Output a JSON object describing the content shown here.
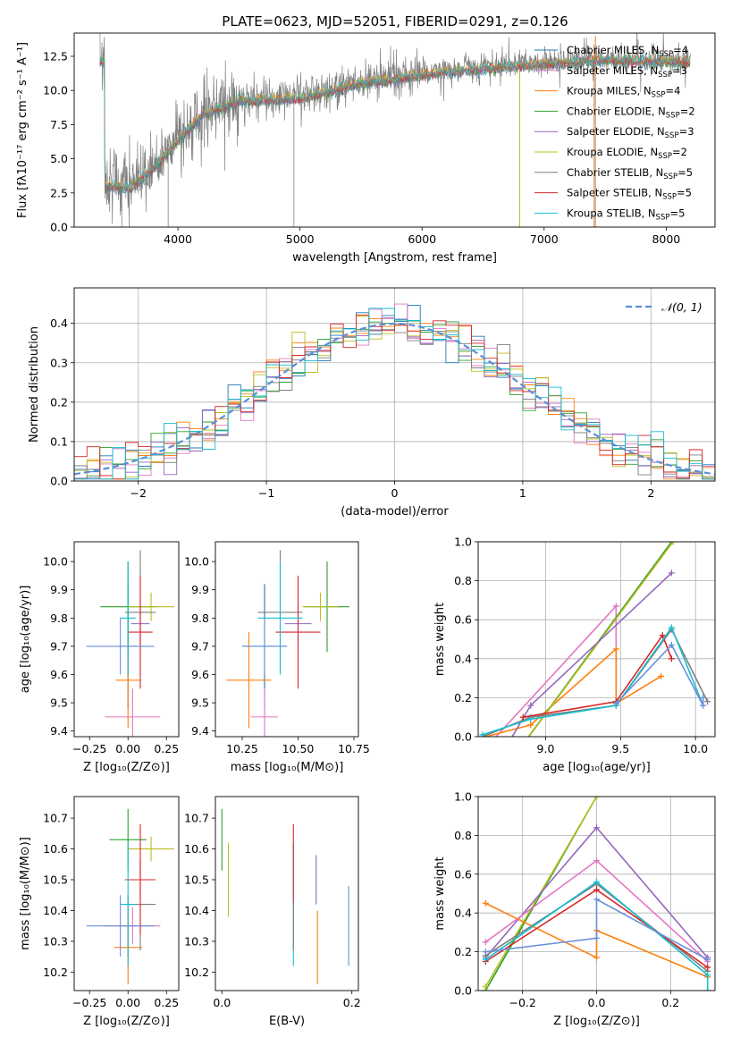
{
  "chart_data": [
    {
      "id": "spectrum",
      "type": "line",
      "title": "PLATE=0623, MJD=52051, FIBERID=0291, z=0.126",
      "xlabel": "wavelength [Angstrom, rest frame]",
      "ylabel": "Flux [fλ10⁻¹⁷ erg cm⁻² s⁻¹ A⁻¹]",
      "xlim": [
        3150,
        8400
      ],
      "ylim": [
        0,
        14.2
      ],
      "xticks": [
        4000,
        5000,
        6000,
        7000,
        8000
      ],
      "yticks": [
        0.0,
        2.5,
        5.0,
        7.5,
        10.0,
        12.5
      ],
      "legend_position": "top-right",
      "legend": [
        {
          "label": "Chabrier MILES, N",
          "sub": "SSP",
          "n": "=4",
          "color": "#1f77b4"
        },
        {
          "label": "Salpeter MILES, N",
          "sub": "SSP",
          "n": "=3",
          "color": "#e377c2"
        },
        {
          "label": "Kroupa MILES, N",
          "sub": "SSP",
          "n": "=4",
          "color": "#ff7f0e"
        },
        {
          "label": "Chabrier ELODIE, N",
          "sub": "SSP",
          "n": "=2",
          "color": "#2ca02c"
        },
        {
          "label": "Salpeter ELODIE, N",
          "sub": "SSP",
          "n": "=3",
          "color": "#9467bd"
        },
        {
          "label": "Kroupa ELODIE, N",
          "sub": "SSP",
          "n": "=2",
          "color": "#bcbd22"
        },
        {
          "label": "Chabrier STELIB, N",
          "sub": "SSP",
          "n": "=5",
          "color": "#7f7f7f"
        },
        {
          "label": "Salpeter STELIB, N",
          "sub": "SSP",
          "n": "=5",
          "color": "#d62728"
        },
        {
          "label": "Kroupa STELIB, N",
          "sub": "SSP",
          "n": "=5",
          "color": "#17becf"
        }
      ],
      "data_trend": {
        "x": [
          3400,
          3600,
          3800,
          4000,
          4200,
          4500,
          5000,
          5500,
          6000,
          6500,
          7000,
          7500,
          8000,
          8200
        ],
        "y": [
          3.3,
          3.0,
          4.5,
          6.5,
          8.4,
          9.4,
          9.6,
          10.7,
          11.3,
          11.8,
          12.1,
          12.4,
          12.3,
          12.3
        ]
      }
    },
    {
      "id": "residuals",
      "type": "histogram",
      "xlabel": "(data-model)/error",
      "ylabel": "Normed distribution",
      "xlim": [
        -2.5,
        2.5
      ],
      "ylim": [
        0,
        0.49
      ],
      "xticks": [
        -2,
        -1,
        0,
        1,
        2
      ],
      "yticks": [
        0.0,
        0.1,
        0.2,
        0.3,
        0.4
      ],
      "legend_label": "𝒩(0, 1)",
      "legend_position": "top-right",
      "reference_curve": "normal(0,1)"
    },
    {
      "id": "age_vs_Z",
      "type": "scatter",
      "xlabel": "Z [log₁₀(Z/Z⊙)]",
      "ylabel": "age  [log₁₀(age/yr)]",
      "xlim": [
        -0.35,
        0.33
      ],
      "ylim": [
        9.38,
        10.07
      ],
      "xticks": [
        -0.25,
        0.0,
        0.25
      ],
      "yticks": [
        9.4,
        9.5,
        9.6,
        9.7,
        9.8,
        9.9,
        10.0
      ],
      "points": [
        {
          "color": "#1f77b4",
          "x": 0.0,
          "xerr": 0.06,
          "y": 9.7,
          "yerr": 0.22
        },
        {
          "color": "#e377c2",
          "x": 0.03,
          "xerr": 0.18,
          "y": 9.45,
          "yerr": 0.1
        },
        {
          "color": "#ff7f0e",
          "x": 0.0,
          "xerr": 0.08,
          "y": 9.58,
          "yerr": 0.17
        },
        {
          "color": "#2ca02c",
          "x": 0.0,
          "xerr": 0.18,
          "y": 9.84,
          "yerr": 0.16
        },
        {
          "color": "#9467bd",
          "x": 0.08,
          "xerr": 0.06,
          "y": 9.78,
          "yerr": 0.08
        },
        {
          "color": "#bcbd22",
          "x": 0.15,
          "xerr": 0.15,
          "y": 9.84,
          "yerr": 0.05
        },
        {
          "color": "#7f7f7f",
          "x": 0.08,
          "xerr": 0.1,
          "y": 9.82,
          "yerr": 0.22
        },
        {
          "color": "#d62728",
          "x": 0.08,
          "xerr": 0.08,
          "y": 9.75,
          "yerr": 0.2
        },
        {
          "color": "#17becf",
          "x": 0.0,
          "xerr": 0.05,
          "y": 9.8,
          "yerr": 0.2
        },
        {
          "color": "#6a8fd8",
          "x": -0.05,
          "xerr": 0.22,
          "y": 9.7,
          "yerr": 0.1
        }
      ]
    },
    {
      "id": "age_vs_mass",
      "type": "scatter",
      "xlabel": "mass [log₁₀(M/M⊙)]",
      "ylabel": "",
      "xlim": [
        10.13,
        10.77
      ],
      "ylim": [
        9.38,
        10.07
      ],
      "xticks": [
        10.25,
        10.5,
        10.75
      ],
      "yticks": [
        9.4,
        9.5,
        9.6,
        9.7,
        9.8,
        9.9,
        10.0
      ],
      "points": [
        {
          "color": "#1f77b4",
          "x": 10.35,
          "xerr": 0.1,
          "y": 9.7,
          "yerr": 0.22
        },
        {
          "color": "#e377c2",
          "x": 10.35,
          "xerr": 0.06,
          "y": 9.45,
          "yerr": 0.1
        },
        {
          "color": "#ff7f0e",
          "x": 10.28,
          "xerr": 0.1,
          "y": 9.58,
          "yerr": 0.17
        },
        {
          "color": "#2ca02c",
          "x": 10.63,
          "xerr": 0.1,
          "y": 9.84,
          "yerr": 0.16
        },
        {
          "color": "#9467bd",
          "x": 10.5,
          "xerr": 0.06,
          "y": 9.78,
          "yerr": 0.08
        },
        {
          "color": "#bcbd22",
          "x": 10.6,
          "xerr": 0.08,
          "y": 9.84,
          "yerr": 0.05
        },
        {
          "color": "#7f7f7f",
          "x": 10.42,
          "xerr": 0.1,
          "y": 9.82,
          "yerr": 0.22
        },
        {
          "color": "#d62728",
          "x": 10.5,
          "xerr": 0.1,
          "y": 9.75,
          "yerr": 0.2
        },
        {
          "color": "#17becf",
          "x": 10.42,
          "xerr": 0.1,
          "y": 9.8,
          "yerr": 0.2
        },
        {
          "color": "#6a8fd8",
          "x": 10.35,
          "xerr": 0.1,
          "y": 9.7,
          "yerr": 0.1
        }
      ]
    },
    {
      "id": "weight_vs_age",
      "type": "line",
      "xlabel": "age  [log₁₀(age/yr)]",
      "ylabel": "mass weight",
      "xlim": [
        8.55,
        10.13
      ],
      "ylim": [
        0,
        1.0
      ],
      "xticks": [
        9.0,
        9.5,
        10.0
      ],
      "yticks": [
        0.0,
        0.2,
        0.4,
        0.6,
        0.8,
        1.0
      ],
      "series": [
        {
          "color": "#e377c2",
          "x": [
            8.55,
            9.47,
            9.47
          ],
          "y": [
            -0.1,
            0.67,
            0.16
          ]
        },
        {
          "color": "#ff7f0e",
          "x": [
            8.6,
            8.9,
            9.47,
            9.47,
            9.77
          ],
          "y": [
            0.0,
            0.06,
            0.45,
            0.17,
            0.31
          ]
        },
        {
          "color": "#2ca02c",
          "x": [
            8.6,
            9.84
          ],
          "y": [
            -0.3,
            1.0
          ]
        },
        {
          "color": "#bcbd22",
          "x": [
            8.62,
            9.85
          ],
          "y": [
            -0.28,
            1.0
          ]
        },
        {
          "color": "#9467bd",
          "x": [
            8.7,
            8.9,
            9.84
          ],
          "y": [
            -0.1,
            0.16,
            0.84
          ]
        },
        {
          "color": "#7f7f7f",
          "x": [
            8.58,
            8.9,
            9.47,
            9.84,
            10.08
          ],
          "y": [
            0.0,
            0.1,
            0.16,
            0.55,
            0.18
          ]
        },
        {
          "color": "#d62728",
          "x": [
            8.85,
            9.47,
            9.78,
            9.84
          ],
          "y": [
            0.1,
            0.18,
            0.52,
            0.4
          ]
        },
        {
          "color": "#17becf",
          "x": [
            8.58,
            8.9,
            9.47,
            9.84,
            10.05
          ],
          "y": [
            0.01,
            0.09,
            0.16,
            0.56,
            0.16
          ]
        },
        {
          "color": "#6a8fd8",
          "x": [
            9.47,
            9.84,
            10.05,
            10.05
          ],
          "y": [
            0.17,
            0.47,
            0.16,
            0.2
          ]
        }
      ]
    },
    {
      "id": "mass_vs_Z",
      "type": "scatter",
      "xlabel": "Z [log₁₀(Z/Z⊙)]",
      "ylabel": "mass [log₁₀(M/M⊙)]",
      "xlim": [
        -0.35,
        0.33
      ],
      "ylim": [
        10.14,
        10.77
      ],
      "xticks": [
        -0.25,
        0.0,
        0.25
      ],
      "yticks": [
        10.2,
        10.3,
        10.4,
        10.5,
        10.6,
        10.7
      ],
      "points": [
        {
          "color": "#1f77b4",
          "x": 0.0,
          "xerr": 0.05,
          "y": 10.35,
          "yerr": 0.1
        },
        {
          "color": "#e377c2",
          "x": 0.03,
          "xerr": 0.18,
          "y": 10.35,
          "yerr": 0.06
        },
        {
          "color": "#ff7f0e",
          "x": 0.0,
          "xerr": 0.09,
          "y": 10.28,
          "yerr": 0.12
        },
        {
          "color": "#2ca02c",
          "x": 0.0,
          "xerr": 0.12,
          "y": 10.63,
          "yerr": 0.1
        },
        {
          "color": "#9467bd",
          "x": 0.08,
          "xerr": 0.06,
          "y": 10.5,
          "yerr": 0.06
        },
        {
          "color": "#bcbd22",
          "x": 0.15,
          "xerr": 0.15,
          "y": 10.6,
          "yerr": 0.04
        },
        {
          "color": "#7f7f7f",
          "x": 0.08,
          "xerr": 0.1,
          "y": 10.42,
          "yerr": 0.15
        },
        {
          "color": "#d62728",
          "x": 0.08,
          "xerr": 0.1,
          "y": 10.5,
          "yerr": 0.18
        },
        {
          "color": "#17becf",
          "x": 0.0,
          "xerr": 0.05,
          "y": 10.42,
          "yerr": 0.2
        },
        {
          "color": "#6a8fd8",
          "x": -0.05,
          "xerr": 0.22,
          "y": 10.35,
          "yerr": 0.1
        }
      ]
    },
    {
      "id": "mass_vs_ebv",
      "type": "scatter",
      "xlabel": "E(B-V)",
      "ylabel": "",
      "xlim": [
        -0.01,
        0.21
      ],
      "ylim": [
        10.14,
        10.77
      ],
      "xticks": [
        0.0,
        0.2
      ],
      "yticks": [
        10.2,
        10.3,
        10.4,
        10.5,
        10.6,
        10.7
      ],
      "points": [
        {
          "color": "#2ca02c",
          "x": 0.0,
          "y": 10.63,
          "yerr": 0.1
        },
        {
          "color": "#bcbd22",
          "x": 0.01,
          "y": 10.5,
          "yerr": 0.12
        },
        {
          "color": "#17becf",
          "x": 0.11,
          "y": 10.42,
          "yerr": 0.2
        },
        {
          "color": "#d62728",
          "x": 0.11,
          "y": 10.55,
          "yerr": 0.13
        },
        {
          "color": "#7f7f7f",
          "x": 0.11,
          "y": 10.35,
          "yerr": 0.08
        },
        {
          "color": "#9467bd",
          "x": 0.145,
          "y": 10.5,
          "yerr": 0.08
        },
        {
          "color": "#ff7f0e",
          "x": 0.147,
          "y": 10.28,
          "yerr": 0.12
        },
        {
          "color": "#6a8fd8",
          "x": 0.195,
          "y": 10.35,
          "yerr": 0.13
        }
      ]
    },
    {
      "id": "weight_vs_Z",
      "type": "line",
      "xlabel": "Z [log₁₀(Z/Z⊙)]",
      "ylabel": "mass weight",
      "xlim": [
        -0.32,
        0.32
      ],
      "ylim": [
        0,
        1.0
      ],
      "xticks": [
        -0.2,
        0.0,
        0.2
      ],
      "yticks": [
        0.0,
        0.2,
        0.4,
        0.6,
        0.8,
        1.0
      ],
      "series": [
        {
          "color": "#2ca02c",
          "x": [
            -0.3,
            0.0
          ],
          "y": [
            0.0,
            1.0
          ]
        },
        {
          "color": "#bcbd22",
          "x": [
            -0.3,
            0.0
          ],
          "y": [
            0.02,
            1.0
          ]
        },
        {
          "color": "#9467bd",
          "x": [
            -0.3,
            0.0,
            0.3
          ],
          "y": [
            0.17,
            0.84,
            0.17
          ]
        },
        {
          "color": "#e377c2",
          "x": [
            -0.3,
            0.0,
            0.3
          ],
          "y": [
            0.25,
            0.67,
            0.15
          ]
        },
        {
          "color": "#ff7f0e",
          "x": [
            -0.3,
            0.0,
            0.0,
            0.3
          ],
          "y": [
            0.45,
            0.17,
            0.31,
            0.07
          ]
        },
        {
          "color": "#7f7f7f",
          "x": [
            -0.3,
            0.0,
            0.3
          ],
          "y": [
            0.18,
            0.55,
            0.1
          ]
        },
        {
          "color": "#d62728",
          "x": [
            -0.3,
            0.0,
            0.3
          ],
          "y": [
            0.15,
            0.52,
            0.12
          ]
        },
        {
          "color": "#17becf",
          "x": [
            -0.3,
            0.0,
            0.3,
            0.3
          ],
          "y": [
            0.16,
            0.56,
            0.08,
            0.0
          ]
        },
        {
          "color": "#6a8fd8",
          "x": [
            -0.3,
            0.0,
            0.0,
            0.3
          ],
          "y": [
            0.2,
            0.27,
            0.47,
            0.16
          ]
        }
      ]
    }
  ]
}
